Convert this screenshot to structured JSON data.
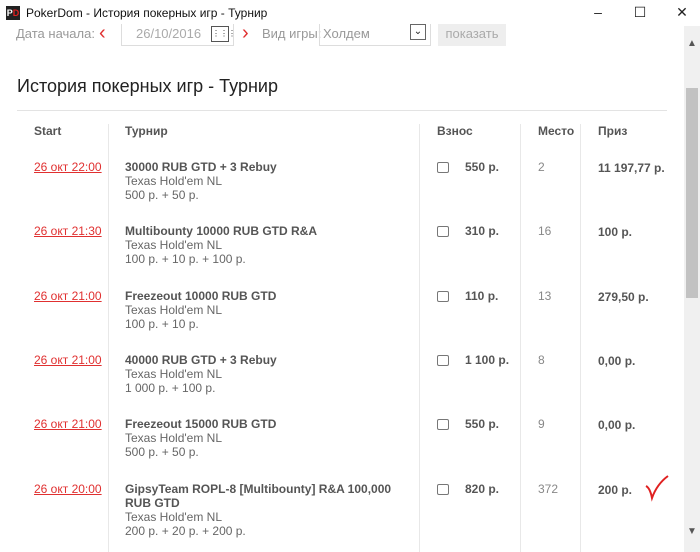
{
  "window": {
    "title": "PokerDom - История покерных игр - Турнир",
    "logo": "PD",
    "minimize": "–",
    "maximize": "☐",
    "close": "✕"
  },
  "filters": {
    "date_label": "Дата начала:",
    "date_value": "26/10/2016",
    "game_label": "Вид игры:",
    "game_value": "Холдем",
    "show_label": "показать"
  },
  "heading": "История покерных игр - Турнир",
  "table": {
    "headers": {
      "start": "Start",
      "tournament": "Турнир",
      "fee": "Взнос",
      "place": "Место",
      "prize": "Приз"
    },
    "rows": [
      {
        "start": "26 окт 22:00",
        "name": "30000 RUB GTD + 3 Rebuy",
        "game": "Texas Hold'em NL",
        "buyin": "500 р. + 50 р.",
        "fee": "550 р.",
        "place": "2",
        "prize": "11 197,77 р."
      },
      {
        "start": "26 окт 21:30",
        "name": "Multibounty 10000 RUB GTD R&A",
        "game": "Texas Hold'em NL",
        "buyin": "100 р. + 10 р. + 100 р.",
        "fee": "310 р.",
        "place": "16",
        "prize": "100 р."
      },
      {
        "start": "26 окт 21:00",
        "name": "Freezeout 10000 RUB GTD",
        "game": "Texas Hold'em NL",
        "buyin": "100 р. + 10 р.",
        "fee": "110 р.",
        "place": "13",
        "prize": "279,50 р."
      },
      {
        "start": "26 окт 21:00",
        "name": "40000 RUB GTD + 3 Rebuy",
        "game": "Texas Hold'em NL",
        "buyin": "1 000 р. + 100 р.",
        "fee": "1 100 р.",
        "place": "8",
        "prize": "0,00 р."
      },
      {
        "start": "26 окт 21:00",
        "name": "Freezeout 15000 RUB GTD",
        "game": "Texas Hold'em NL",
        "buyin": "500 р. + 50 р.",
        "fee": "550 р.",
        "place": "9",
        "prize": "0,00 р."
      },
      {
        "start": "26 окт 20:00",
        "name": "GipsyTeam ROPL-8 [Multibounty] R&A 100,000 RUB GTD",
        "game": "Texas Hold'em NL",
        "buyin": "200 р. + 20 р. + 200 р.",
        "fee": "820 р.",
        "place": "372",
        "prize": "200 р."
      }
    ]
  },
  "colors": {
    "accent": "#e03030"
  }
}
